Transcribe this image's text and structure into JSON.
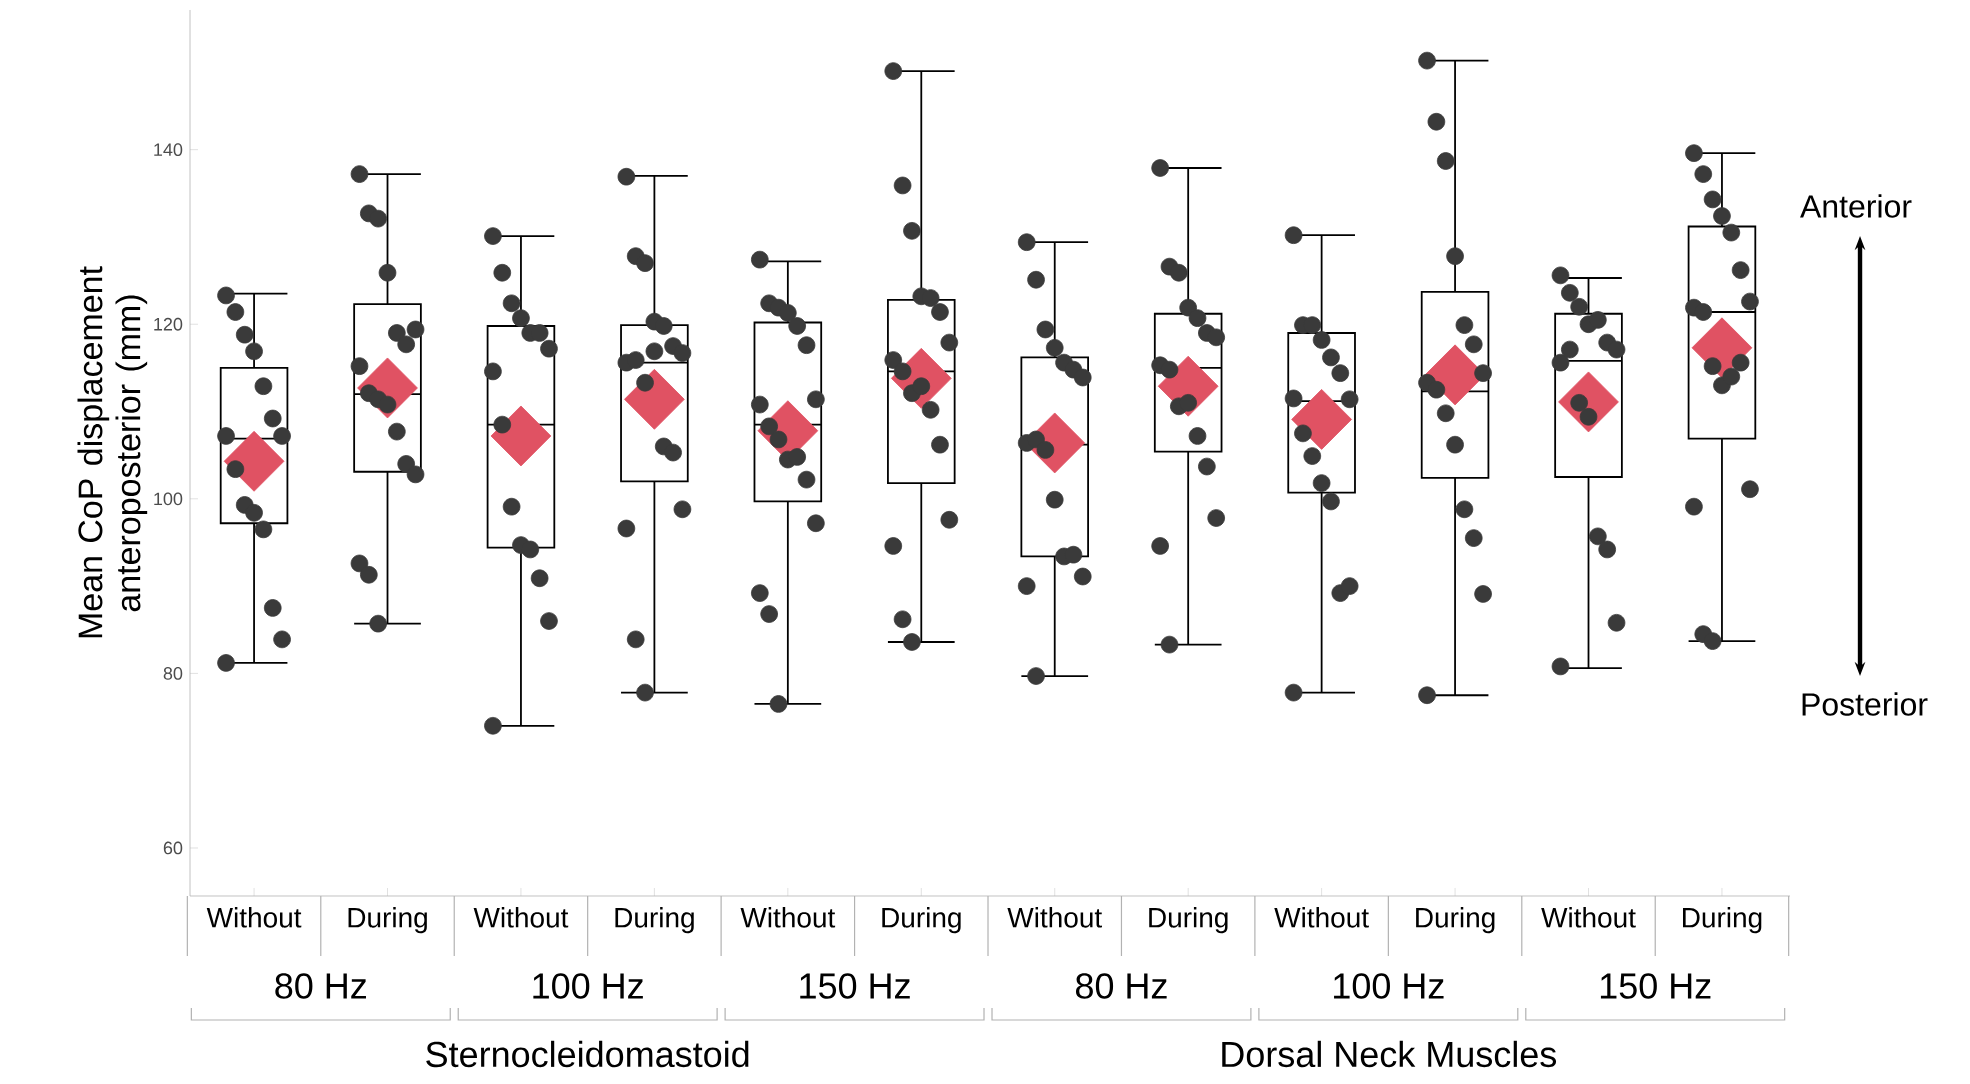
{
  "chart_data": {
    "type": "box",
    "ylabel": "Mean CoP displacement anteroposterior (mm)",
    "categories": [
      "Without",
      "During",
      "Without",
      "During",
      "Without",
      "During",
      "Without",
      "During",
      "Without",
      "During",
      "Without",
      "During"
    ],
    "ylim": [
      54.5,
      156
    ],
    "yticks": [
      60,
      80,
      100,
      120,
      140
    ],
    "grid": false,
    "boxes": [
      {
        "low": 81.2,
        "q1": 97.2,
        "median": 106.9,
        "q3": 115.0,
        "high": 123.5,
        "mean": 104.3
      },
      {
        "low": 85.7,
        "q1": 103.1,
        "median": 112.0,
        "q3": 122.3,
        "high": 137.2,
        "mean": 112.7
      },
      {
        "low": 74.0,
        "q1": 94.4,
        "median": 108.5,
        "q3": 119.8,
        "high": 130.1,
        "mean": 107.2
      },
      {
        "low": 77.8,
        "q1": 102.0,
        "median": 115.6,
        "q3": 119.9,
        "high": 137.0,
        "mean": 111.4
      },
      {
        "low": 76.5,
        "q1": 99.7,
        "median": 108.5,
        "q3": 120.2,
        "high": 127.2,
        "mean": 107.8
      },
      {
        "low": 83.6,
        "q1": 101.8,
        "median": 114.6,
        "q3": 122.8,
        "high": 149.0,
        "mean": 113.8
      },
      {
        "low": 79.7,
        "q1": 93.4,
        "median": 106.2,
        "q3": 116.2,
        "high": 129.4,
        "mean": 106.4
      },
      {
        "low": 83.3,
        "q1": 105.4,
        "median": 115.0,
        "q3": 121.2,
        "high": 137.9,
        "mean": 112.9
      },
      {
        "low": 77.8,
        "q1": 100.7,
        "median": 111.2,
        "q3": 119.0,
        "high": 130.2,
        "mean": 109.1
      },
      {
        "low": 77.5,
        "q1": 102.4,
        "median": 112.3,
        "q3": 123.7,
        "high": 150.2,
        "mean": 114.2
      },
      {
        "low": 80.6,
        "q1": 102.5,
        "median": 115.8,
        "q3": 121.2,
        "high": 125.3,
        "mean": 111.1
      },
      {
        "low": 83.7,
        "q1": 106.9,
        "median": 121.4,
        "q3": 131.2,
        "high": 139.6,
        "mean": 117.3
      }
    ],
    "series": [
      {
        "type": "scatter",
        "color": "#3a3a3a",
        "values": [
          123.3,
          137.2,
          130.1,
          136.9,
          127.4,
          149.0,
          129.4,
          137.9,
          130.2,
          150.2,
          125.6,
          139.6
        ]
      },
      {
        "type": "scatter",
        "color": "#3a3a3a",
        "values": [
          121.4,
          132.7,
          125.9,
          127.8,
          122.4,
          135.9,
          125.1,
          126.6,
          119.9,
          143.2,
          123.6,
          137.2
        ]
      },
      {
        "type": "scatter",
        "color": "#3a3a3a",
        "values": [
          118.8,
          132.1,
          122.4,
          127.0,
          121.9,
          130.7,
          119.4,
          125.9,
          119.9,
          138.7,
          122.0,
          134.3
        ]
      },
      {
        "type": "scatter",
        "color": "#3a3a3a",
        "values": [
          116.9,
          125.9,
          120.7,
          120.3,
          121.3,
          123.2,
          117.3,
          121.9,
          118.2,
          127.8,
          120.0,
          132.4
        ]
      },
      {
        "type": "scatter",
        "color": "#3a3a3a",
        "values": [
          112.9,
          119.0,
          119.0,
          119.8,
          119.8,
          123.0,
          115.6,
          120.7,
          116.2,
          119.9,
          120.5,
          130.5
        ]
      },
      {
        "type": "scatter",
        "color": "#3a3a3a",
        "values": [
          109.2,
          117.7,
          119.0,
          117.5,
          117.6,
          121.4,
          114.8,
          119.0,
          114.4,
          117.7,
          117.9,
          126.2
        ]
      },
      {
        "type": "scatter",
        "color": "#3a3a3a",
        "values": [
          107.2,
          119.4,
          117.2,
          116.7,
          111.4,
          117.9,
          113.9,
          118.5,
          111.4,
          114.4,
          117.1,
          122.6
        ]
      },
      {
        "type": "scatter",
        "color": "#3a3a3a",
        "values": [
          107.2,
          115.2,
          114.6,
          115.6,
          110.8,
          115.9,
          106.4,
          115.3,
          111.5,
          113.3,
          115.6,
          121.9
        ]
      },
      {
        "type": "scatter",
        "color": "#3a3a3a",
        "values": [
          103.4,
          112.1,
          108.5,
          115.9,
          108.3,
          114.6,
          106.8,
          114.8,
          107.5,
          112.5,
          117.1,
          121.4
        ]
      },
      {
        "type": "scatter",
        "color": "#3a3a3a",
        "values": [
          99.3,
          111.4,
          99.1,
          113.3,
          106.8,
          112.1,
          105.6,
          110.6,
          104.9,
          109.8,
          111.0,
          115.2
        ]
      },
      {
        "type": "scatter",
        "color": "#3a3a3a",
        "values": [
          98.4,
          110.8,
          94.7,
          116.9,
          104.5,
          112.9,
          99.9,
          111.0,
          101.8,
          106.2,
          109.4,
          113.0
        ]
      },
      {
        "type": "scatter",
        "color": "#3a3a3a",
        "values": [
          96.5,
          107.7,
          94.2,
          106.0,
          104.8,
          110.2,
          93.4,
          107.2,
          99.7,
          98.8,
          95.7,
          114.0
        ]
      },
      {
        "type": "scatter",
        "color": "#3a3a3a",
        "values": [
          87.5,
          104.0,
          90.9,
          105.3,
          102.2,
          106.2,
          93.6,
          103.7,
          89.2,
          95.5,
          94.2,
          115.6
        ]
      },
      {
        "type": "scatter",
        "color": "#3a3a3a",
        "values": [
          83.9,
          102.8,
          86.0,
          98.8,
          97.2,
          97.6,
          91.1,
          97.8,
          90.0,
          89.1,
          85.8,
          101.1
        ]
      },
      {
        "type": "scatter",
        "color": "#3a3a3a",
        "values": [
          81.2,
          92.6,
          74.0,
          96.6,
          89.2,
          94.6,
          90.0,
          94.6,
          77.8,
          77.5,
          80.8,
          99.1
        ]
      },
      {
        "type": "scatter",
        "color": "#3a3a3a",
        "values": [
          null,
          91.3,
          null,
          83.9,
          86.8,
          86.2,
          79.7,
          83.3,
          null,
          null,
          null,
          84.5
        ]
      },
      {
        "type": "scatter",
        "color": "#3a3a3a",
        "values": [
          null,
          85.7,
          null,
          77.8,
          76.5,
          83.6,
          null,
          null,
          null,
          null,
          null,
          83.7
        ]
      }
    ],
    "annotations": [
      "80 Hz",
      "100 Hz",
      "150 Hz",
      "80 Hz",
      "100 Hz",
      "150 Hz",
      "Sternocleidomastoid",
      "Dorsal Neck Muscles",
      "Anterior",
      "Posterior"
    ]
  }
}
